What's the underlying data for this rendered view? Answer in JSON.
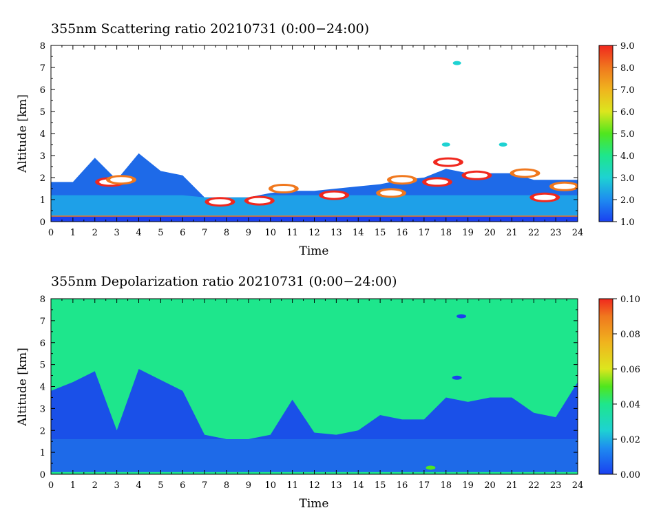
{
  "chart_data": [
    {
      "type": "heatmap",
      "title": "355nm Scattering ratio  20210731 (0:00−24:00)",
      "xlabel": "Time",
      "ylabel": "Altitude [km]",
      "xlim": [
        0,
        24
      ],
      "ylim": [
        0,
        8
      ],
      "x_ticks": [
        "0",
        "1",
        "2",
        "3",
        "4",
        "5",
        "6",
        "7",
        "8",
        "9",
        "10",
        "11",
        "12",
        "13",
        "14",
        "15",
        "16",
        "17",
        "18",
        "19",
        "20",
        "21",
        "22",
        "23",
        "24"
      ],
      "y_ticks": [
        "0",
        "1",
        "2",
        "3",
        "4",
        "5",
        "6",
        "7",
        "8"
      ],
      "colorbar": {
        "min": 1.0,
        "max": 9.0,
        "ticks": [
          "1.0",
          "2.0",
          "3.0",
          "4.0",
          "5.0",
          "6.0",
          "7.0",
          "8.0",
          "9.0"
        ]
      },
      "boundary_layer_top_km": [
        1.8,
        1.8,
        2.9,
        1.9,
        3.1,
        2.3,
        2.1,
        1.1,
        1.1,
        1.1,
        1.3,
        1.4,
        1.4,
        1.5,
        1.6,
        1.7,
        1.9,
        2.0,
        2.4,
        2.2,
        2.2,
        2.2,
        1.9,
        1.9,
        1.9
      ],
      "features": [
        {
          "time": 2.7,
          "alt": 1.8,
          "value": 9.0
        },
        {
          "time": 3.2,
          "alt": 1.9,
          "value": 8.0
        },
        {
          "time": 7.7,
          "alt": 0.9,
          "value": 9.0
        },
        {
          "time": 9.5,
          "alt": 0.95,
          "value": 9.0
        },
        {
          "time": 10.6,
          "alt": 1.5,
          "value": 8.0
        },
        {
          "time": 12.9,
          "alt": 1.2,
          "value": 9.0
        },
        {
          "time": 15.5,
          "alt": 1.3,
          "value": 8.0
        },
        {
          "time": 16.0,
          "alt": 1.9,
          "value": 8.0
        },
        {
          "time": 17.6,
          "alt": 1.8,
          "value": 9.0
        },
        {
          "time": 18.1,
          "alt": 2.7,
          "value": 9.0
        },
        {
          "time": 19.4,
          "alt": 2.1,
          "value": 9.0
        },
        {
          "time": 21.6,
          "alt": 2.2,
          "value": 8.0
        },
        {
          "time": 22.5,
          "alt": 1.1,
          "value": 9.0
        },
        {
          "time": 23.4,
          "alt": 1.6,
          "value": 8.0
        },
        {
          "time": 18.5,
          "alt": 7.2,
          "value": 3.0
        },
        {
          "time": 18.0,
          "alt": 3.5,
          "value": 3.0
        },
        {
          "time": 20.6,
          "alt": 3.5,
          "value": 3.0
        }
      ]
    },
    {
      "type": "heatmap",
      "title": "355nm Depolarization ratio  20210731 (0:00−24:00)",
      "xlabel": "Time",
      "ylabel": "Altitude [km]",
      "xlim": [
        0,
        24
      ],
      "ylim": [
        0,
        8
      ],
      "x_ticks": [
        "0",
        "1",
        "2",
        "3",
        "4",
        "5",
        "6",
        "7",
        "8",
        "9",
        "10",
        "11",
        "12",
        "13",
        "14",
        "15",
        "16",
        "17",
        "18",
        "19",
        "20",
        "21",
        "22",
        "23",
        "24"
      ],
      "y_ticks": [
        "0",
        "1",
        "2",
        "3",
        "4",
        "5",
        "6",
        "7",
        "8"
      ],
      "colorbar": {
        "min": 0.0,
        "max": 0.1,
        "ticks": [
          "0.00",
          "0.02",
          "0.04",
          "0.06",
          "0.08",
          "0.10"
        ]
      },
      "background_value": 0.04,
      "low_depol_top_km": [
        3.8,
        4.2,
        4.7,
        2.0,
        4.8,
        4.3,
        3.8,
        1.8,
        1.6,
        1.6,
        1.8,
        3.4,
        1.9,
        1.8,
        2.0,
        2.7,
        2.5,
        2.5,
        3.5,
        3.3,
        3.5,
        3.5,
        2.8,
        2.6,
        4.2
      ],
      "features": [
        {
          "time": 18.7,
          "alt": 7.2,
          "value": 0.0
        },
        {
          "time": 18.5,
          "alt": 4.4,
          "value": 0.0
        },
        {
          "time": 17.3,
          "alt": 0.3,
          "value": 0.05
        }
      ]
    }
  ]
}
